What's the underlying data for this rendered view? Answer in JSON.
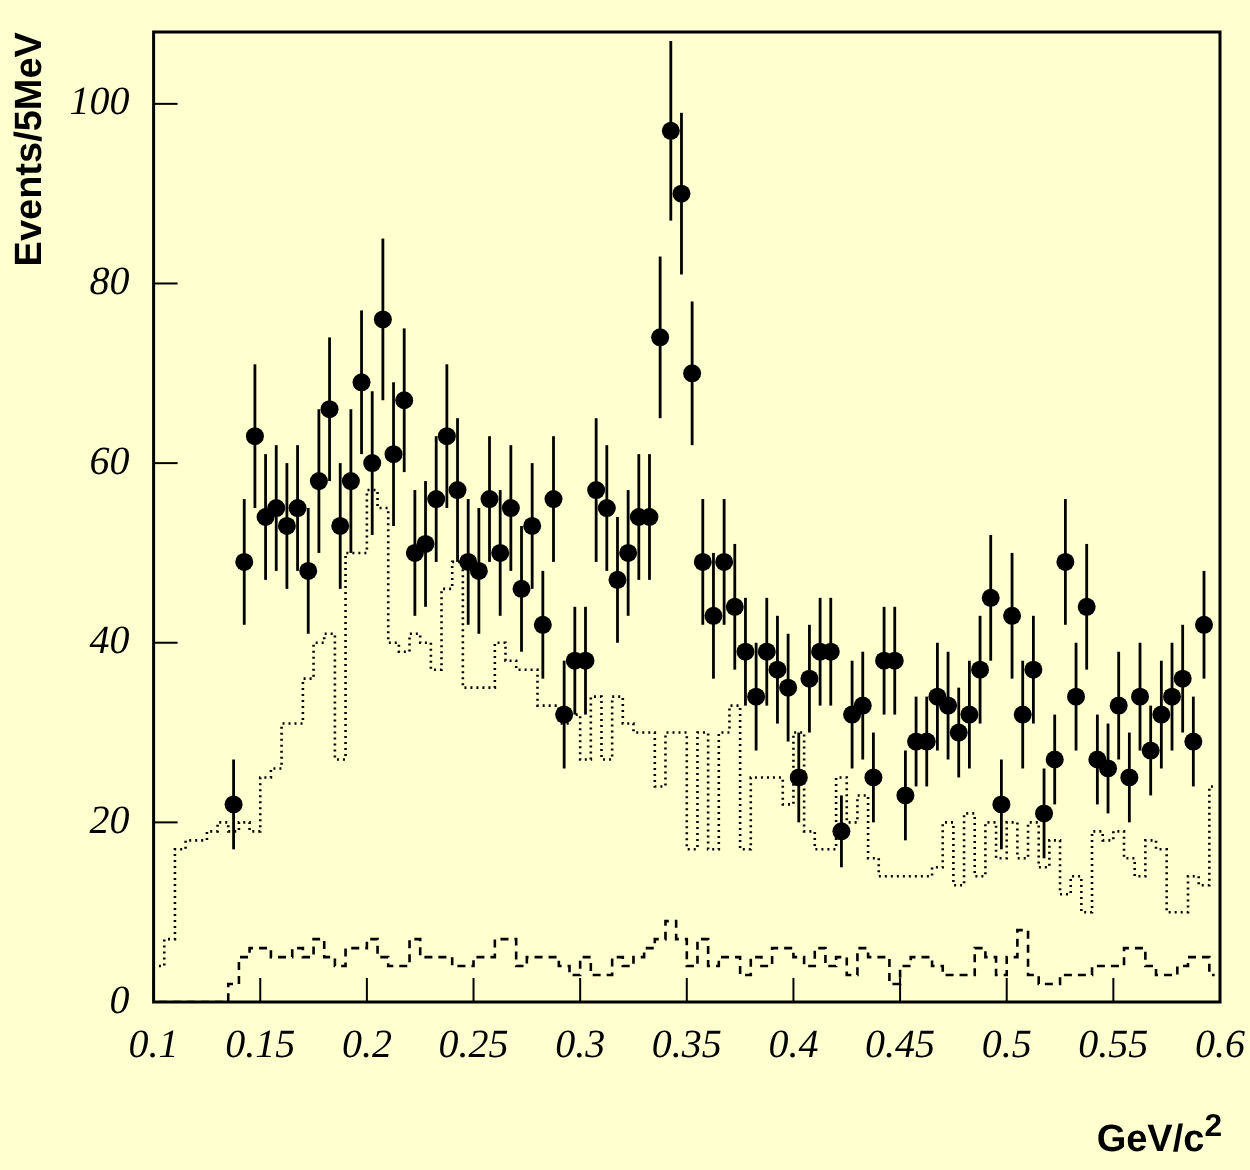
{
  "chart_data": {
    "type": "scatter",
    "ylabel": "Events/5MeV",
    "xlabel": "GeV/c$^{2}$",
    "xlim": [
      0.1,
      0.6
    ],
    "ylim": [
      0,
      108
    ],
    "xticks": [
      0.1,
      0.15,
      0.2,
      0.25,
      0.3,
      0.35,
      0.4,
      0.45,
      0.5,
      0.55,
      0.6
    ],
    "yticks": [
      0,
      20,
      40,
      60,
      80,
      100
    ],
    "legend": false,
    "series": [
      {
        "type": "step",
        "color": "#000000",
        "line_style": "dotted",
        "marker": "none",
        "x": [
          0.1025,
          0.1075,
          0.1125,
          0.1175,
          0.1225,
          0.1275,
          0.1325,
          0.1375,
          0.1425,
          0.1475,
          0.1525,
          0.1575,
          0.1625,
          0.1675,
          0.1725,
          0.1775,
          0.1825,
          0.1875,
          0.1925,
          0.1975,
          0.2025,
          0.2075,
          0.2125,
          0.2175,
          0.2225,
          0.2275,
          0.2325,
          0.2375,
          0.2425,
          0.2475,
          0.2525,
          0.2575,
          0.2625,
          0.2675,
          0.2725,
          0.2775,
          0.2825,
          0.2875,
          0.2925,
          0.2975,
          0.3025,
          0.3075,
          0.3125,
          0.3175,
          0.3225,
          0.3275,
          0.3325,
          0.3375,
          0.3425,
          0.3475,
          0.3525,
          0.3575,
          0.3625,
          0.3675,
          0.3725,
          0.3775,
          0.3825,
          0.3875,
          0.3925,
          0.3975,
          0.4025,
          0.4075,
          0.4125,
          0.4175,
          0.4225,
          0.4275,
          0.4325,
          0.4375,
          0.4425,
          0.4475,
          0.4525,
          0.4575,
          0.4625,
          0.4675,
          0.4725,
          0.4775,
          0.4825,
          0.4875,
          0.4925,
          0.4975,
          0.5025,
          0.5075,
          0.5125,
          0.5175,
          0.5225,
          0.5275,
          0.5325,
          0.5375,
          0.5425,
          0.5475,
          0.5525,
          0.5575,
          0.5625,
          0.5675,
          0.5725,
          0.5775,
          0.5825,
          0.5875,
          0.5925,
          0.5975
        ],
        "values": [
          4,
          7,
          17,
          18,
          18,
          19,
          20,
          19,
          20,
          19,
          25,
          26,
          31,
          31,
          36,
          40,
          41,
          27,
          50,
          50,
          57,
          55,
          40,
          39,
          41,
          40,
          37,
          46,
          49,
          35,
          35,
          35,
          40,
          38,
          37,
          37,
          33,
          33,
          31,
          32,
          27,
          34,
          27,
          34,
          31,
          30,
          30,
          24,
          30,
          30,
          17,
          30,
          17,
          30,
          33,
          17,
          25,
          25,
          25,
          22,
          30,
          19,
          17,
          17,
          25,
          20,
          23,
          16,
          14,
          14,
          14,
          14,
          14,
          15,
          20,
          13,
          21,
          14,
          20,
          16,
          20,
          16,
          20,
          15,
          18,
          12,
          14,
          10,
          19,
          18,
          19,
          16,
          14,
          18,
          17,
          10,
          10,
          14,
          13,
          24
        ]
      },
      {
        "type": "step",
        "color": "#000000",
        "line_style": "dashed",
        "marker": "none",
        "x": [
          0.1025,
          0.1075,
          0.1125,
          0.1175,
          0.1225,
          0.1275,
          0.1325,
          0.1375,
          0.1425,
          0.1475,
          0.1525,
          0.1575,
          0.1625,
          0.1675,
          0.1725,
          0.1775,
          0.1825,
          0.1875,
          0.1925,
          0.1975,
          0.2025,
          0.2075,
          0.2125,
          0.2175,
          0.2225,
          0.2275,
          0.2325,
          0.2375,
          0.2425,
          0.2475,
          0.2525,
          0.2575,
          0.2625,
          0.2675,
          0.2725,
          0.2775,
          0.2825,
          0.2875,
          0.2925,
          0.2975,
          0.3025,
          0.3075,
          0.3125,
          0.3175,
          0.3225,
          0.3275,
          0.3325,
          0.3375,
          0.3425,
          0.3475,
          0.3525,
          0.3575,
          0.3625,
          0.3675,
          0.3725,
          0.3775,
          0.3825,
          0.3875,
          0.3925,
          0.3975,
          0.4025,
          0.4075,
          0.4125,
          0.4175,
          0.4225,
          0.4275,
          0.4325,
          0.4375,
          0.4425,
          0.4475,
          0.4525,
          0.4575,
          0.4625,
          0.4675,
          0.4725,
          0.4775,
          0.4825,
          0.4875,
          0.4925,
          0.4975,
          0.5025,
          0.5075,
          0.5125,
          0.5175,
          0.5225,
          0.5275,
          0.5325,
          0.5375,
          0.5425,
          0.5475,
          0.5525,
          0.5575,
          0.5625,
          0.5675,
          0.5725,
          0.5775,
          0.5825,
          0.5875,
          0.5925,
          0.5975
        ],
        "values": [
          0,
          0,
          0,
          0,
          0,
          0,
          0,
          2,
          5,
          6,
          6,
          5,
          5,
          6,
          5,
          7,
          5,
          4,
          6,
          6,
          7,
          5,
          4,
          4,
          7,
          5,
          5,
          5,
          4,
          4,
          5,
          5,
          7,
          7,
          4,
          5,
          5,
          5,
          4,
          3,
          5,
          3,
          3,
          5,
          4,
          5,
          6,
          7,
          9,
          7,
          4,
          7,
          4,
          5,
          5,
          3,
          5,
          4,
          6,
          6,
          5,
          4,
          6,
          4,
          5,
          3,
          6,
          5,
          5,
          2,
          4,
          5,
          5,
          4,
          3,
          3,
          3,
          6,
          5,
          3,
          5,
          8,
          3,
          2,
          2,
          3,
          3,
          3,
          4,
          4,
          4,
          6,
          6,
          4,
          3,
          3,
          4,
          5,
          5,
          3
        ]
      },
      {
        "type": "scatter",
        "color": "#000000",
        "marker": "circle",
        "x": [
          0.1375,
          0.1425,
          0.1475,
          0.1525,
          0.1575,
          0.1625,
          0.1675,
          0.1725,
          0.1775,
          0.1825,
          0.1875,
          0.1925,
          0.1975,
          0.2025,
          0.2075,
          0.2125,
          0.2175,
          0.2225,
          0.2275,
          0.2325,
          0.2375,
          0.2425,
          0.2475,
          0.2525,
          0.2575,
          0.2625,
          0.2675,
          0.2725,
          0.2775,
          0.2825,
          0.2875,
          0.2925,
          0.2975,
          0.3025,
          0.3075,
          0.3125,
          0.3175,
          0.3225,
          0.3275,
          0.3325,
          0.3375,
          0.3425,
          0.3475,
          0.3525,
          0.3575,
          0.3625,
          0.3675,
          0.3725,
          0.3775,
          0.3825,
          0.3875,
          0.3925,
          0.3975,
          0.4025,
          0.4075,
          0.4125,
          0.4175,
          0.4225,
          0.4275,
          0.4325,
          0.4375,
          0.4425,
          0.4475,
          0.4525,
          0.4575,
          0.4625,
          0.4675,
          0.4725,
          0.4775,
          0.4825,
          0.4875,
          0.4925,
          0.4975,
          0.5025,
          0.5075,
          0.5125,
          0.5175,
          0.5225,
          0.5275,
          0.5325,
          0.5375,
          0.5425,
          0.5475,
          0.5525,
          0.5575,
          0.5625,
          0.5675,
          0.5725,
          0.5775,
          0.5825,
          0.5875,
          0.5925
        ],
        "values": [
          22,
          49,
          63,
          54,
          55,
          53,
          55,
          48,
          58,
          66,
          53,
          58,
          69,
          60,
          76,
          61,
          67,
          50,
          51,
          56,
          63,
          57,
          49,
          48,
          56,
          50,
          55,
          46,
          53,
          42,
          56,
          32,
          38,
          38,
          57,
          55,
          47,
          50,
          54,
          54,
          74,
          97,
          90,
          70,
          49,
          43,
          49,
          44,
          39,
          34,
          39,
          37,
          35,
          25,
          36,
          39,
          39,
          19,
          32,
          33,
          25,
          38,
          38,
          23,
          29,
          29,
          34,
          33,
          30,
          32,
          37,
          45,
          22,
          43,
          32,
          37,
          21,
          27,
          49,
          34,
          44,
          27,
          26,
          33,
          25,
          34,
          28,
          32,
          34,
          36,
          29,
          42
        ],
        "errors": [
          5,
          7,
          8,
          7,
          7,
          7,
          7,
          7,
          8,
          8,
          7,
          8,
          8,
          8,
          9,
          8,
          8,
          7,
          7,
          7,
          8,
          8,
          7,
          7,
          7,
          7,
          7,
          7,
          7,
          6,
          7,
          6,
          6,
          6,
          8,
          7,
          7,
          7,
          7,
          7,
          9,
          10,
          9,
          8,
          7,
          7,
          7,
          7,
          6,
          6,
          6,
          6,
          6,
          5,
          6,
          6,
          6,
          4,
          6,
          6,
          5,
          6,
          6,
          5,
          5,
          5,
          6,
          6,
          5,
          6,
          6,
          7,
          5,
          7,
          6,
          6,
          5,
          5,
          7,
          6,
          7,
          5,
          5,
          6,
          5,
          6,
          5,
          6,
          6,
          6,
          5,
          6
        ]
      }
    ]
  }
}
